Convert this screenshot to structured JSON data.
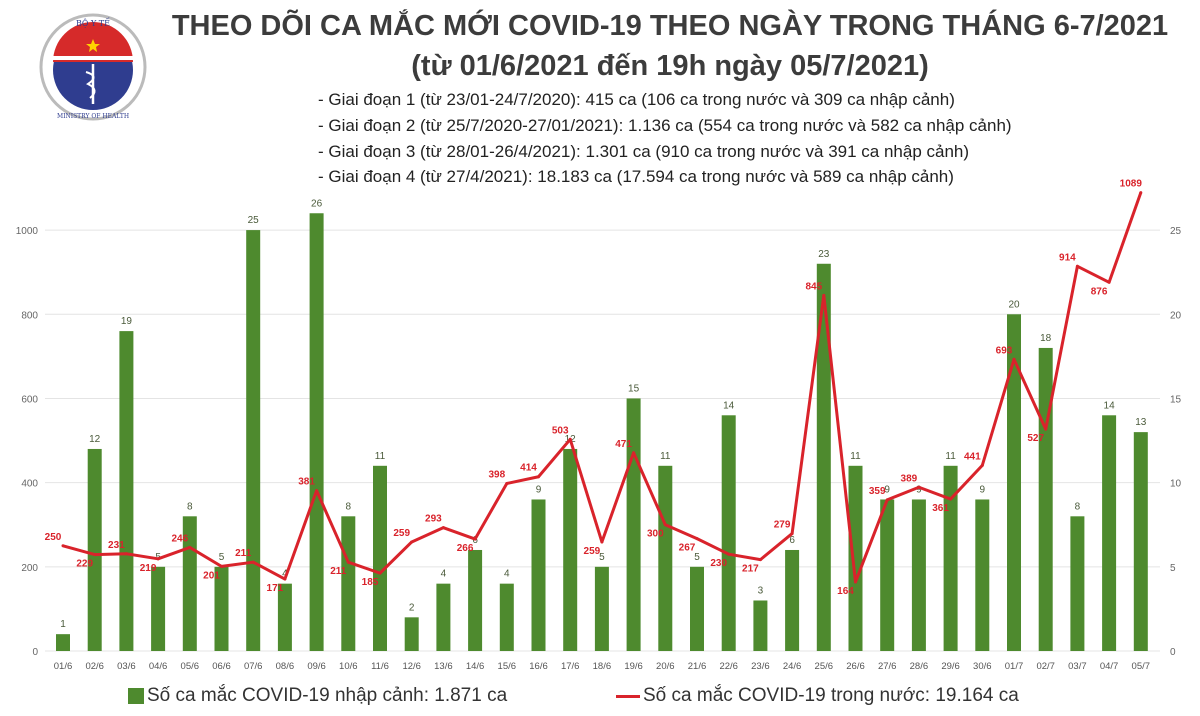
{
  "logo": {
    "top_text": "BỘ Y TẾ",
    "bottom_text": "MINISTRY OF HEALTH"
  },
  "header": {
    "title": "THEO DÕI CA MẮC MỚI COVID-19 THEO NGÀY TRONG THÁNG 6-7/2021",
    "subtitle": "(từ 01/6/2021 đến 19h ngày 05/7/2021)",
    "phases": [
      "- Giai đoạn 1 (từ 23/01-24/7/2020): 415 ca (106 ca trong nước và 309 ca nhập cảnh)",
      "- Giai đoạn 2 (từ 25/7/2020-27/01/2021): 1.136 ca (554 ca trong nước và 582 ca nhập cảnh)",
      "- Giai đoạn 3 (từ 28/01-26/4/2021): 1.301 ca (910 ca trong nước và 391 ca nhập cảnh)",
      "- Giai đoạn 4 (từ 27/4/2021): 18.183 ca (17.594 ca trong nước và 589 ca nhập cảnh)"
    ]
  },
  "legend": {
    "bar": "Số ca mắc COVID-19 nhập cảnh: 1.871 ca",
    "line": "Số ca mắc COVID-19 trong nước: 19.164 ca"
  },
  "chart_data": {
    "type": "bar+line",
    "categories": [
      "01/6",
      "02/6",
      "03/6",
      "04/6",
      "05/6",
      "06/6",
      "07/6",
      "08/6",
      "09/6",
      "10/6",
      "11/6",
      "12/6",
      "13/6",
      "14/6",
      "15/6",
      "16/6",
      "17/6",
      "18/6",
      "19/6",
      "20/6",
      "21/6",
      "22/6",
      "23/6",
      "24/6",
      "25/6",
      "26/6",
      "27/6",
      "28/6",
      "29/6",
      "30/6",
      "01/7",
      "02/7",
      "03/7",
      "04/7",
      "05/7"
    ],
    "series": [
      {
        "name": "Số ca mắc COVID-19 nhập cảnh: 1.871 ca",
        "type": "bar",
        "axis": "right",
        "color": "#4e8a2e",
        "values": [
          1,
          12,
          19,
          5,
          8,
          5,
          25,
          4,
          26,
          8,
          11,
          2,
          4,
          6,
          4,
          9,
          12,
          5,
          15,
          11,
          5,
          14,
          3,
          6,
          23,
          11,
          9,
          9,
          11,
          9,
          20,
          18,
          8,
          14,
          13
        ]
      },
      {
        "name": "Số ca mắc COVID-19 trong nước: 19.164 ca",
        "type": "line",
        "axis": "left",
        "color": "#d9232b",
        "values": [
          250,
          229,
          231,
          219,
          246,
          201,
          211,
          171,
          381,
          211,
          185,
          259,
          293,
          266,
          398,
          414,
          503,
          259,
          471,
          300,
          267,
          230,
          217,
          279,
          845,
          164,
          359,
          389,
          361,
          441,
          693,
          527,
          914,
          876,
          1089
        ]
      }
    ],
    "left_axis": {
      "ticks": [
        0,
        200,
        400,
        600,
        800,
        1000
      ],
      "range": [
        0,
        1100
      ]
    },
    "right_axis": {
      "ticks": [
        0,
        5,
        10,
        15,
        20,
        25
      ],
      "range": [
        0,
        27.5
      ]
    },
    "grid": true,
    "legend_position": "bottom"
  }
}
